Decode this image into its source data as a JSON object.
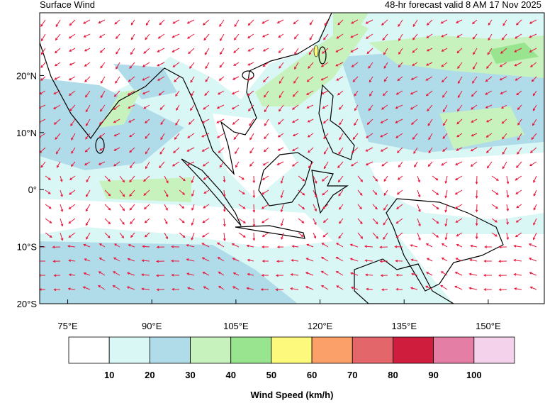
{
  "header": {
    "title": "Surface Wind",
    "subtitle": "48-hr forecast valid 8 AM 17 Nov 2025"
  },
  "map": {
    "lon_range": [
      70,
      160
    ],
    "lat_range": [
      -20,
      31
    ],
    "lon_ticks": [
      {
        "value": 75,
        "label": "75°E"
      },
      {
        "value": 90,
        "label": "90°E"
      },
      {
        "value": 105,
        "label": "105°E"
      },
      {
        "value": 120,
        "label": "120°E"
      },
      {
        "value": 135,
        "label": "135°E"
      },
      {
        "value": 150,
        "label": "150°E"
      }
    ],
    "lat_ticks": [
      {
        "value": 20,
        "label": "20°N"
      },
      {
        "value": 10,
        "label": "10°N"
      },
      {
        "value": 0,
        "label": "0°"
      },
      {
        "value": -10,
        "label": "10°S"
      },
      {
        "value": -20,
        "label": "20°S"
      }
    ]
  },
  "colorbar": {
    "title": "Wind Speed (km/h)",
    "levels": [
      10,
      20,
      30,
      40,
      50,
      60,
      70,
      80,
      90,
      100
    ],
    "colors": [
      "#ffffff",
      "#d8f7f5",
      "#b0dcea",
      "#c7f2bd",
      "#98e48f",
      "#fdf97c",
      "#fca06a",
      "#e3676a",
      "#cf1d3e",
      "#e47ea4",
      "#f5d2ec"
    ]
  }
}
